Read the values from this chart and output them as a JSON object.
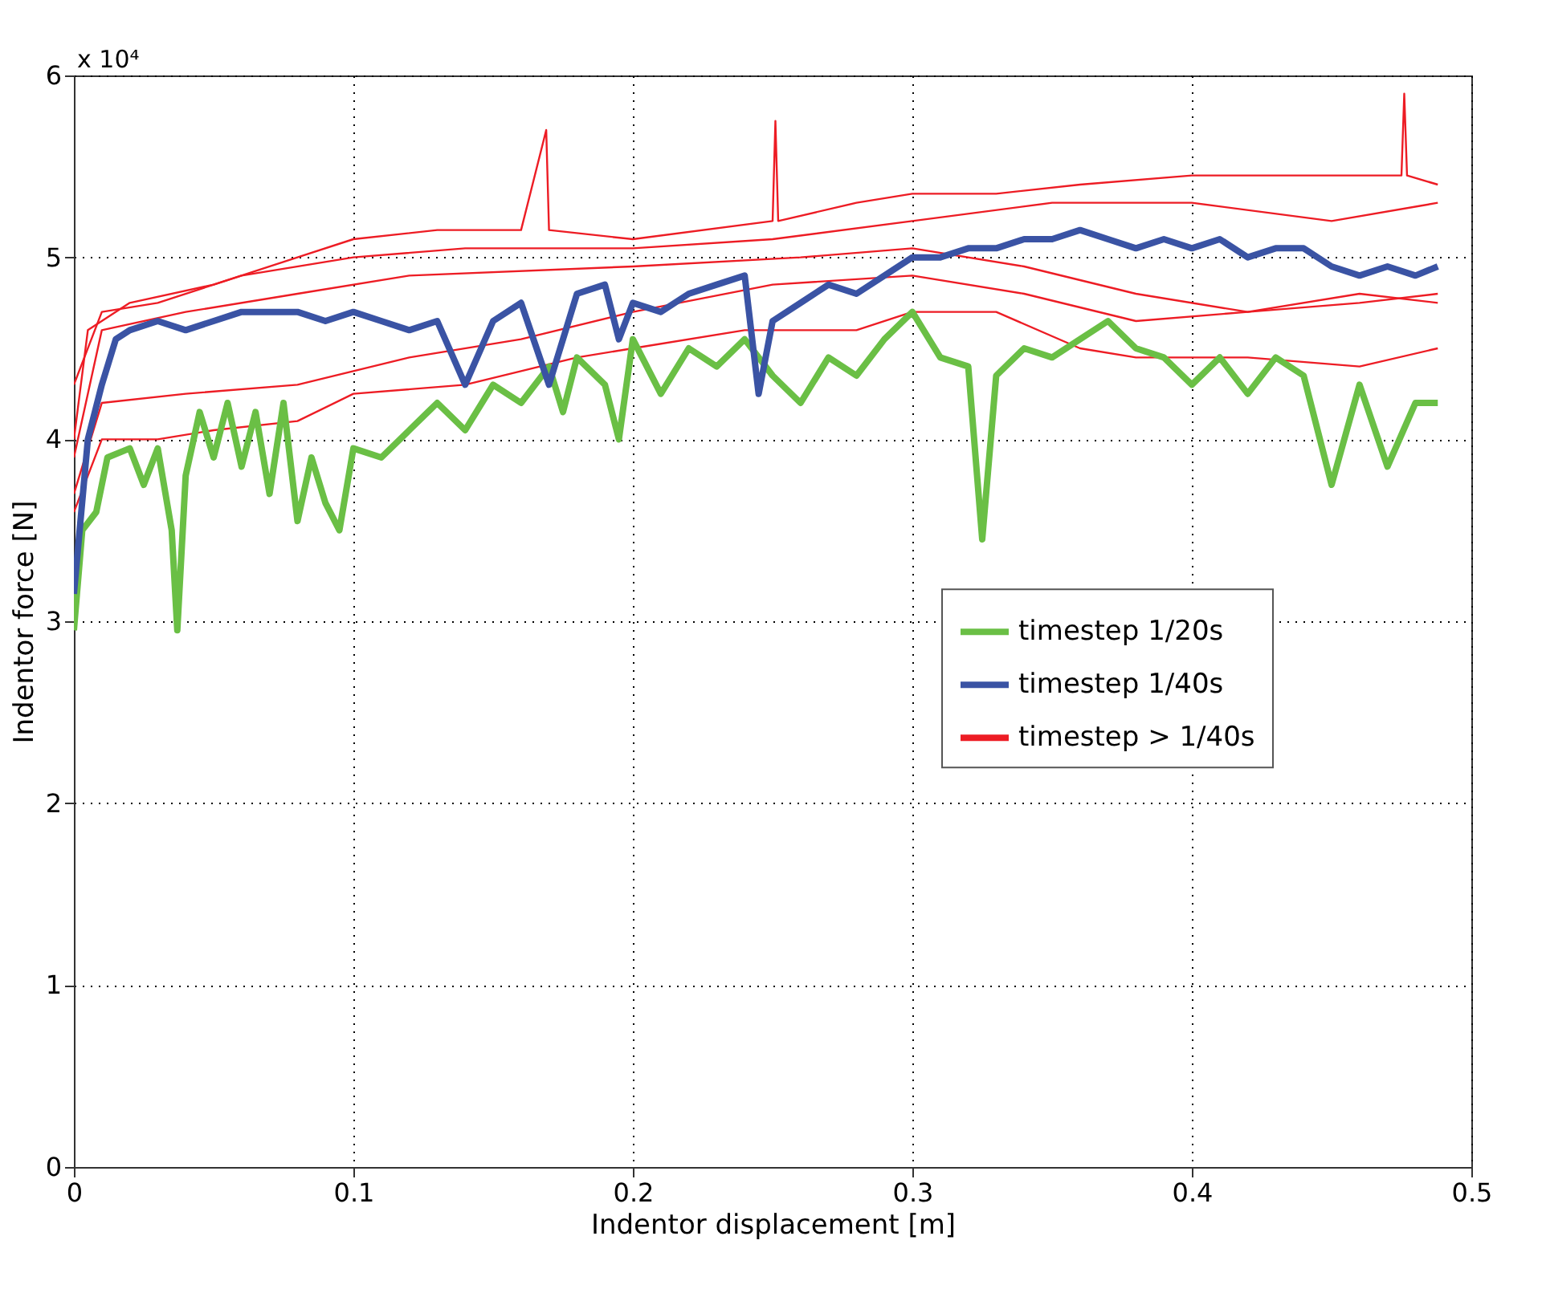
{
  "chart_data": {
    "type": "line",
    "xlabel": "Indentor displacement [m]",
    "ylabel": "Indentor force [N]",
    "annotations": [
      "x 10⁴"
    ],
    "xlim": [
      0,
      0.5
    ],
    "xticks": [
      0,
      0.1,
      0.2,
      0.3,
      0.4,
      0.5
    ],
    "ylim": [
      0,
      6
    ],
    "yticks": [
      0,
      1,
      2,
      3,
      4,
      5,
      6
    ],
    "grid": true,
    "legend": "right",
    "line_style": "solid",
    "series": [
      {
        "name": "timestep 1/20s",
        "color": "#6abf45",
        "x": [
          0,
          0.003,
          0.008,
          0.012,
          0.02,
          0.025,
          0.03,
          0.035,
          0.037,
          0.04,
          0.045,
          0.05,
          0.055,
          0.06,
          0.065,
          0.07,
          0.075,
          0.08,
          0.085,
          0.09,
          0.095,
          0.1,
          0.11,
          0.12,
          0.13,
          0.14,
          0.15,
          0.16,
          0.17,
          0.175,
          0.18,
          0.19,
          0.195,
          0.2,
          0.21,
          0.22,
          0.23,
          0.24,
          0.25,
          0.26,
          0.27,
          0.28,
          0.29,
          0.3,
          0.31,
          0.32,
          0.325,
          0.33,
          0.34,
          0.35,
          0.36,
          0.37,
          0.38,
          0.39,
          0.4,
          0.41,
          0.42,
          0.43,
          0.44,
          0.45,
          0.46,
          0.47,
          0.48,
          0.488
        ],
        "values": [
          2.95,
          3.5,
          3.6,
          3.9,
          3.95,
          3.75,
          3.95,
          3.5,
          2.95,
          3.8,
          4.15,
          3.9,
          4.2,
          3.85,
          4.15,
          3.7,
          4.2,
          3.55,
          3.9,
          3.65,
          3.5,
          3.95,
          3.9,
          4.05,
          4.2,
          4.05,
          4.3,
          4.2,
          4.4,
          4.15,
          4.45,
          4.3,
          4.0,
          4.55,
          4.25,
          4.5,
          4.4,
          4.55,
          4.35,
          4.2,
          4.45,
          4.35,
          4.55,
          4.7,
          4.45,
          4.4,
          3.45,
          4.35,
          4.5,
          4.45,
          4.55,
          4.65,
          4.5,
          4.45,
          4.3,
          4.45,
          4.25,
          4.45,
          4.35,
          3.75,
          4.3,
          3.85,
          4.2,
          4.2
        ]
      },
      {
        "name": "timestep 1/40s",
        "color": "#3a53a4",
        "x": [
          0,
          0.005,
          0.01,
          0.015,
          0.02,
          0.03,
          0.04,
          0.05,
          0.06,
          0.07,
          0.08,
          0.09,
          0.1,
          0.11,
          0.12,
          0.13,
          0.14,
          0.15,
          0.16,
          0.17,
          0.18,
          0.19,
          0.195,
          0.2,
          0.21,
          0.22,
          0.23,
          0.24,
          0.245,
          0.25,
          0.26,
          0.27,
          0.28,
          0.29,
          0.3,
          0.31,
          0.32,
          0.33,
          0.34,
          0.35,
          0.36,
          0.37,
          0.38,
          0.39,
          0.4,
          0.41,
          0.42,
          0.43,
          0.44,
          0.45,
          0.46,
          0.47,
          0.48,
          0.488
        ],
        "values": [
          3.15,
          4.0,
          4.3,
          4.55,
          4.6,
          4.65,
          4.6,
          4.65,
          4.7,
          4.7,
          4.7,
          4.65,
          4.7,
          4.65,
          4.6,
          4.65,
          4.3,
          4.65,
          4.75,
          4.3,
          4.8,
          4.85,
          4.55,
          4.75,
          4.7,
          4.8,
          4.85,
          4.9,
          4.25,
          4.65,
          4.75,
          4.85,
          4.8,
          4.9,
          5.0,
          5.0,
          5.05,
          5.05,
          5.1,
          5.1,
          5.15,
          5.1,
          5.05,
          5.1,
          5.05,
          5.1,
          5.0,
          5.05,
          5.05,
          4.95,
          4.9,
          4.95,
          4.9,
          4.95
        ]
      },
      {
        "name": "timestep > 1/40s",
        "color": "#ed1c24",
        "x": [
          0,
          0.005,
          0.02,
          0.05,
          0.08,
          0.1,
          0.13,
          0.16,
          0.169,
          0.17,
          0.2,
          0.25,
          0.251,
          0.252,
          0.28,
          0.3,
          0.33,
          0.36,
          0.4,
          0.45,
          0.475,
          0.476,
          0.477,
          0.488
        ],
        "values": [
          4.0,
          4.6,
          4.75,
          4.85,
          5.0,
          5.1,
          5.15,
          5.15,
          5.7,
          5.15,
          5.1,
          5.2,
          5.75,
          5.2,
          5.3,
          5.35,
          5.35,
          5.4,
          5.45,
          5.45,
          5.45,
          5.9,
          5.45,
          5.4
        ]
      },
      {
        "color": "#ed1c24",
        "x": [
          0,
          0.01,
          0.03,
          0.06,
          0.1,
          0.14,
          0.2,
          0.25,
          0.3,
          0.35,
          0.4,
          0.45,
          0.488
        ],
        "values": [
          4.3,
          4.7,
          4.75,
          4.9,
          5.0,
          5.05,
          5.05,
          5.1,
          5.2,
          5.3,
          5.3,
          5.2,
          5.3
        ]
      },
      {
        "color": "#ed1c24",
        "x": [
          0,
          0.01,
          0.04,
          0.08,
          0.12,
          0.2,
          0.26,
          0.3,
          0.34,
          0.38,
          0.42,
          0.46,
          0.488
        ],
        "values": [
          3.9,
          4.6,
          4.7,
          4.8,
          4.9,
          4.95,
          5.0,
          5.05,
          4.95,
          4.8,
          4.7,
          4.8,
          4.75
        ]
      },
      {
        "color": "#ed1c24",
        "x": [
          0,
          0.01,
          0.03,
          0.05,
          0.08,
          0.1,
          0.14,
          0.18,
          0.2,
          0.24,
          0.28,
          0.3,
          0.33,
          0.36,
          0.38,
          0.42,
          0.46,
          0.488
        ],
        "values": [
          3.6,
          4.0,
          4.0,
          4.05,
          4.1,
          4.25,
          4.3,
          4.45,
          4.5,
          4.6,
          4.6,
          4.7,
          4.7,
          4.5,
          4.45,
          4.45,
          4.4,
          4.5
        ]
      },
      {
        "color": "#ed1c24",
        "x": [
          0,
          0.01,
          0.04,
          0.08,
          0.12,
          0.16,
          0.2,
          0.25,
          0.3,
          0.34,
          0.38,
          0.42,
          0.46,
          0.488
        ],
        "values": [
          3.7,
          4.2,
          4.25,
          4.3,
          4.45,
          4.55,
          4.7,
          4.85,
          4.9,
          4.8,
          4.65,
          4.7,
          4.75,
          4.8
        ]
      }
    ]
  }
}
